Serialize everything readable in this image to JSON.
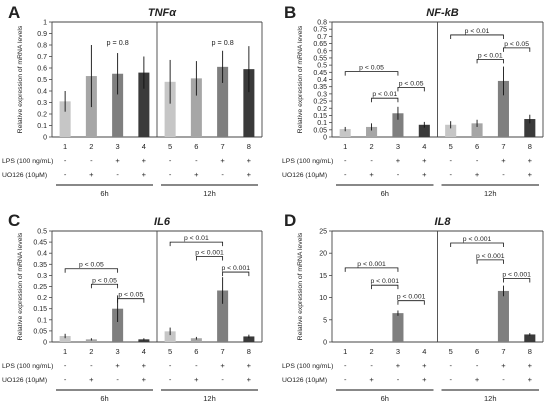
{
  "chart_data": [
    {
      "type": "bar",
      "panel_letter": "A",
      "title": "TNFα",
      "ylabel": "Relative expression of mRNA levels",
      "ylim": [
        0,
        1
      ],
      "yticks": [
        "0",
        "0.1",
        "0.2",
        "0.3",
        "0.4",
        "0.5",
        "0.6",
        "0.7",
        "0.8",
        "0.9",
        "1"
      ],
      "categories": [
        "1",
        "2",
        "3",
        "4",
        "5",
        "6",
        "7",
        "8"
      ],
      "values": [
        0.31,
        0.53,
        0.55,
        0.56,
        0.48,
        0.51,
        0.61,
        0.59
      ],
      "errors": [
        0.09,
        0.27,
        0.18,
        0.14,
        0.19,
        0.15,
        0.14,
        0.2
      ],
      "colors": [
        "#c6c6c6",
        "#a6a6a6",
        "#7f7f7f",
        "#3a3a3a",
        "#c6c6c6",
        "#a6a6a6",
        "#7f7f7f",
        "#3a3a3a"
      ],
      "annotations": [
        {
          "text": "p = 0.8",
          "x": 2.5,
          "y": 0.8
        },
        {
          "text": "p = 0.8",
          "x": 6.5,
          "y": 0.8
        }
      ],
      "brackets": [],
      "lps_row": [
        "-",
        "-",
        "+",
        "+",
        "-",
        "-",
        "+",
        "+"
      ],
      "uo_row": [
        "-",
        "+",
        "-",
        "+",
        "-",
        "+",
        "-",
        "+"
      ],
      "time_groups": [
        "6h",
        "12h"
      ]
    },
    {
      "type": "bar",
      "panel_letter": "B",
      "title": "NF-kB",
      "ylabel": "Relative expression of mRNA levels",
      "ylim": [
        0,
        0.8
      ],
      "yticks": [
        "0",
        "0.05",
        "0.1",
        "0.15",
        "0.2",
        "0.25",
        "0.3",
        "0.35",
        "0.4",
        "0.45",
        "0.5",
        "0.55",
        "0.6",
        "0.65",
        "0.7",
        "0.75",
        "0.8"
      ],
      "categories": [
        "1",
        "2",
        "3",
        "4",
        "5",
        "6",
        "7",
        "8"
      ],
      "values": [
        0.055,
        0.07,
        0.165,
        0.085,
        0.085,
        0.095,
        0.39,
        0.125
      ],
      "errors": [
        0.015,
        0.025,
        0.045,
        0.02,
        0.025,
        0.025,
        0.1,
        0.03
      ],
      "colors": [
        "#c6c6c6",
        "#a6a6a6",
        "#7f7f7f",
        "#3a3a3a",
        "#c6c6c6",
        "#a6a6a6",
        "#7f7f7f",
        "#3a3a3a"
      ],
      "annotations": [],
      "brackets": [
        {
          "text": "p < 0.05",
          "from": 1,
          "to": 3,
          "y": 0.455
        },
        {
          "text": "p < 0.01",
          "from": 2,
          "to": 3,
          "y": 0.27
        },
        {
          "text": "p < 0.05",
          "from": 3,
          "to": 4,
          "y": 0.345
        },
        {
          "text": "p < 0.01",
          "from": 5,
          "to": 7,
          "y": 0.71
        },
        {
          "text": "p < 0.01",
          "from": 6,
          "to": 7,
          "y": 0.54
        },
        {
          "text": "p < 0.05",
          "from": 7,
          "to": 8,
          "y": 0.62
        }
      ],
      "lps_row": [
        "-",
        "-",
        "+",
        "+",
        "-",
        "-",
        "+",
        "+"
      ],
      "uo_row": [
        "-",
        "+",
        "-",
        "+",
        "-",
        "+",
        "-",
        "+"
      ],
      "time_groups": [
        "6h",
        "12h"
      ]
    },
    {
      "type": "bar",
      "panel_letter": "C",
      "title": "IL6",
      "ylabel": "Relative expression of mRNA levels",
      "ylim": [
        0,
        0.5
      ],
      "yticks": [
        "0",
        "0.05",
        "0.1",
        "0.15",
        "0.2",
        "0.25",
        "0.3",
        "0.35",
        "0.4",
        "0.45",
        "0.5"
      ],
      "categories": [
        "1",
        "2",
        "3",
        "4",
        "5",
        "6",
        "7",
        "8"
      ],
      "values": [
        0.027,
        0.012,
        0.15,
        0.012,
        0.048,
        0.017,
        0.232,
        0.025
      ],
      "errors": [
        0.01,
        0.005,
        0.06,
        0.005,
        0.017,
        0.006,
        0.06,
        0.008
      ],
      "colors": [
        "#c6c6c6",
        "#a6a6a6",
        "#7f7f7f",
        "#3a3a3a",
        "#c6c6c6",
        "#a6a6a6",
        "#7f7f7f",
        "#3a3a3a"
      ],
      "annotations": [],
      "brackets": [
        {
          "text": "p < 0.05",
          "from": 1,
          "to": 3,
          "y": 0.33
        },
        {
          "text": "p < 0.05",
          "from": 2,
          "to": 3,
          "y": 0.26
        },
        {
          "text": "p < 0.05",
          "from": 3,
          "to": 4,
          "y": 0.195
        },
        {
          "text": "p < 0.01",
          "from": 5,
          "to": 7,
          "y": 0.45
        },
        {
          "text": "p < 0.001",
          "from": 6,
          "to": 7,
          "y": 0.385
        },
        {
          "text": "p < 0.001",
          "from": 7,
          "to": 8,
          "y": 0.315
        }
      ],
      "lps_row": [
        "-",
        "-",
        "+",
        "+",
        "-",
        "-",
        "+",
        "+"
      ],
      "uo_row": [
        "-",
        "+",
        "-",
        "+",
        "-",
        "+",
        "-",
        "+"
      ],
      "time_groups": [
        "6h",
        "12h"
      ]
    },
    {
      "type": "bar",
      "panel_letter": "D",
      "title": "IL8",
      "ylabel": "Relative expression of mRNA levels",
      "ylim": [
        0,
        25
      ],
      "yticks": [
        "0",
        "5",
        "10",
        "15",
        "20",
        "25"
      ],
      "categories": [
        "1",
        "2",
        "3",
        "4",
        "5",
        "6",
        "7",
        "8"
      ],
      "values": [
        0,
        0,
        6.5,
        0,
        0,
        0,
        11.5,
        1.7
      ],
      "errors": [
        0,
        0,
        0.6,
        0,
        0,
        0,
        1.2,
        0.3
      ],
      "colors": [
        "#c6c6c6",
        "#a6a6a6",
        "#7f7f7f",
        "#3a3a3a",
        "#c6c6c6",
        "#a6a6a6",
        "#7f7f7f",
        "#3a3a3a"
      ],
      "annotations": [],
      "brackets": [
        {
          "text": "p < 0.001",
          "from": 1,
          "to": 3,
          "y": 16.7
        },
        {
          "text": "p < 0.001",
          "from": 2,
          "to": 3,
          "y": 12.8
        },
        {
          "text": "p < 0.001",
          "from": 3,
          "to": 4,
          "y": 9.3
        },
        {
          "text": "p < 0.001",
          "from": 5,
          "to": 7,
          "y": 22.3
        },
        {
          "text": "p < 0.001",
          "from": 6,
          "to": 7,
          "y": 18.5
        },
        {
          "text": "p < 0.001",
          "from": 7,
          "to": 8,
          "y": 14.3
        }
      ],
      "lps_row": [
        "-",
        "-",
        "+",
        "+",
        "-",
        "-",
        "+",
        "+"
      ],
      "uo_row": [
        "-",
        "+",
        "-",
        "+",
        "-",
        "+",
        "-",
        "+"
      ],
      "time_groups": [
        "6h",
        "12h"
      ]
    }
  ],
  "treatments": {
    "lps_label": "LPS (100 ng/mL)",
    "uo_label": "UO126 (10μM)"
  }
}
